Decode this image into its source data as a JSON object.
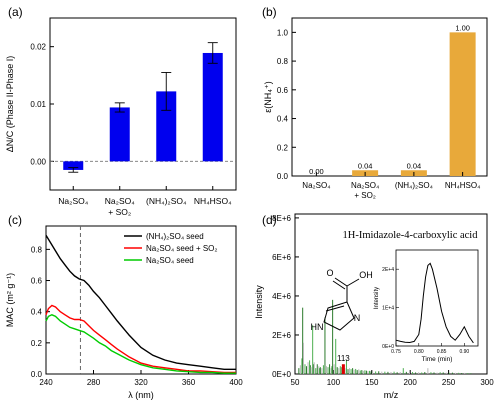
{
  "chart_data": [
    {
      "id": "a",
      "panel_label": "(a)",
      "type": "bar",
      "ylabel": "ΔN/C (Phase II-Phase I)",
      "ylim": [
        -0.005,
        0.025
      ],
      "yticks": [
        "0.00",
        "0.01",
        "0.02"
      ],
      "ytick_values": [
        0.0,
        0.01,
        0.02
      ],
      "categories": [
        {
          "l1": "Na₂SO₄",
          "l2": ""
        },
        {
          "l1": "Na₂SO₄",
          "l2": "+ SO₂"
        },
        {
          "l1": "(NH₄)₂SO₄",
          "l2": ""
        },
        {
          "l1": "NH₄HSO₄",
          "l2": ""
        }
      ],
      "values": [
        -0.0015,
        0.0094,
        0.0122,
        0.0189
      ],
      "errors": [
        0.0004,
        0.0008,
        0.0033,
        0.0018
      ],
      "color": "#0000ee"
    },
    {
      "id": "b",
      "panel_label": "(b)",
      "type": "bar",
      "ylabel": "ε(NH₄⁺)",
      "ylim": [
        0,
        1.1
      ],
      "yticks": [
        "0.0",
        "0.2",
        "0.4",
        "0.6",
        "0.8",
        "1.0"
      ],
      "ytick_values": [
        0,
        0.2,
        0.4,
        0.6,
        0.8,
        1.0
      ],
      "categories": [
        {
          "l1": "Na₂SO₄",
          "l2": ""
        },
        {
          "l1": "Na₂SO₄",
          "l2": "+ SO₂"
        },
        {
          "l1": "(NH₄)₂SO₄",
          "l2": ""
        },
        {
          "l1": "NH₄HSO₄",
          "l2": ""
        }
      ],
      "values": [
        0.0,
        0.04,
        0.04,
        1.0
      ],
      "data_labels": [
        "0.00",
        "0.04",
        "0.04",
        "1.00"
      ],
      "color": "#e8a93a"
    },
    {
      "id": "c",
      "panel_label": "(c)",
      "type": "line",
      "xlabel": "λ (nm)",
      "ylabel": "MAC (m² g⁻¹)",
      "xlim": [
        240,
        400
      ],
      "ylim": [
        0,
        0.95
      ],
      "xticks": [
        "240",
        "280",
        "320",
        "360",
        "400"
      ],
      "xtick_values": [
        240,
        280,
        320,
        360,
        400
      ],
      "yticks": [
        "0.0",
        "0.2",
        "0.4",
        "0.6",
        "0.8"
      ],
      "ytick_values": [
        0,
        0.2,
        0.4,
        0.6,
        0.8
      ],
      "dashed_line_x": 269,
      "series": [
        {
          "name": "(NH₄)₂SO₄ seed",
          "color": "#000000",
          "x": [
            240,
            244,
            248,
            252,
            256,
            260,
            264,
            268,
            272,
            276,
            280,
            285,
            290,
            295,
            300,
            310,
            320,
            330,
            340,
            350,
            360,
            370,
            380,
            390,
            400
          ],
          "y": [
            0.89,
            0.84,
            0.79,
            0.74,
            0.7,
            0.66,
            0.63,
            0.61,
            0.6,
            0.57,
            0.53,
            0.49,
            0.44,
            0.39,
            0.34,
            0.25,
            0.17,
            0.12,
            0.09,
            0.07,
            0.06,
            0.05,
            0.04,
            0.03,
            0.03
          ]
        },
        {
          "name": "Na₂SO₄ seed + SO₂",
          "color": "#ff0000",
          "x": [
            240,
            242,
            245,
            248,
            252,
            256,
            260,
            264,
            268,
            272,
            276,
            280,
            285,
            290,
            295,
            300,
            310,
            320,
            330,
            340,
            350,
            360,
            370,
            380,
            390,
            400
          ],
          "y": [
            0.38,
            0.42,
            0.44,
            0.43,
            0.4,
            0.38,
            0.36,
            0.35,
            0.35,
            0.34,
            0.31,
            0.28,
            0.25,
            0.22,
            0.19,
            0.16,
            0.11,
            0.07,
            0.05,
            0.04,
            0.03,
            0.02,
            0.02,
            0.015,
            0.01,
            0.01
          ]
        },
        {
          "name": "Na₂SO₄ seed",
          "color": "#00cc00",
          "x": [
            240,
            242,
            245,
            248,
            252,
            256,
            260,
            264,
            268,
            272,
            276,
            280,
            285,
            290,
            295,
            300,
            310,
            320,
            330,
            340,
            350,
            360,
            370,
            380,
            390,
            400
          ],
          "y": [
            0.34,
            0.37,
            0.38,
            0.37,
            0.34,
            0.32,
            0.3,
            0.29,
            0.28,
            0.27,
            0.25,
            0.23,
            0.2,
            0.18,
            0.15,
            0.13,
            0.09,
            0.06,
            0.04,
            0.03,
            0.02,
            0.015,
            0.01,
            0.01,
            0.005,
            0.005
          ]
        }
      ],
      "legend_placement": "top-right"
    },
    {
      "id": "d",
      "panel_label": "(d)",
      "type": "bar",
      "title": "1H-Imidazole-4-carboxylic acid",
      "xlabel": "m/z",
      "ylabel": "Intensity",
      "xlim": [
        50,
        300
      ],
      "ylim": [
        0,
        8200000
      ],
      "xticks": [
        "50",
        "100",
        "150",
        "200",
        "250",
        "300"
      ],
      "xtick_values": [
        50,
        100,
        150,
        200,
        250,
        300
      ],
      "yticks": [
        "0E+0",
        "2E+6",
        "4E+6",
        "6E+6",
        "8E+6"
      ],
      "ytick_values": [
        0,
        2000000,
        4000000,
        6000000,
        8000000
      ],
      "highlight_peak": {
        "mz": 113,
        "label": "113",
        "intensity": 500000,
        "color": "#dd0000"
      },
      "background_peaks_mz": [
        55,
        57,
        59,
        60,
        61,
        63,
        65,
        67,
        69,
        70,
        71,
        73,
        74,
        75,
        77,
        79,
        81,
        82,
        83,
        85,
        87,
        89,
        91,
        93,
        95,
        97,
        98,
        99,
        101,
        103,
        105,
        107,
        109,
        111,
        115,
        117,
        119,
        121,
        123,
        125,
        127,
        129,
        131,
        133,
        135,
        137,
        139,
        141,
        143,
        145,
        147,
        149,
        151,
        155,
        159,
        163,
        167,
        171,
        175,
        179,
        183,
        187,
        191,
        195,
        199,
        203,
        207,
        211,
        215,
        219,
        223,
        227,
        231,
        235,
        239,
        243,
        247,
        251,
        255,
        259,
        263,
        267,
        271,
        275,
        279
      ],
      "background_peaks_intensity": [
        300000,
        450000,
        800000,
        3400000,
        1600000,
        500000,
        400000,
        600000,
        700000,
        450000,
        350000,
        2500000,
        500000,
        600000,
        300000,
        500000,
        400000,
        300000,
        350000,
        300000,
        450000,
        2900000,
        400000,
        350000,
        500000,
        300000,
        400000,
        3800000,
        500000,
        1800000,
        350000,
        300000,
        400000,
        350000,
        300000,
        700000,
        250000,
        300000,
        250000,
        300000,
        220000,
        260000,
        200000,
        240000,
        180000,
        200000,
        160000,
        190000,
        170000,
        150000,
        160000,
        140000,
        150000,
        130000,
        140000,
        120000,
        120000,
        110000,
        100000,
        120000,
        90000,
        100000,
        300000,
        110000,
        90000,
        100000,
        80000,
        90000,
        80000,
        100000,
        300000,
        90000,
        80000,
        70000,
        90000,
        80000,
        70000,
        60000,
        70000,
        60000,
        60000,
        50000,
        55000,
        50000,
        40000
      ],
      "background_peak_colors": [
        "#2b7a2b",
        "#b8b8b8",
        "#4caf50"
      ],
      "inset": {
        "type": "line",
        "xlabel": "Time (min)",
        "ylabel": "Intensity",
        "xlim": [
          0.75,
          0.93
        ],
        "ylim": [
          0,
          25000
        ],
        "xticks": [
          "0.75",
          "0.80",
          "0.85",
          "0.90"
        ],
        "xtick_values": [
          0.75,
          0.8,
          0.85,
          0.9
        ],
        "yticks": [
          "0E+0",
          "1E+4",
          "2E+4"
        ],
        "ytick_values": [
          0,
          10000,
          20000
        ],
        "x": [
          0.75,
          0.76,
          0.77,
          0.78,
          0.79,
          0.8,
          0.805,
          0.81,
          0.815,
          0.82,
          0.825,
          0.83,
          0.84,
          0.85,
          0.86,
          0.87,
          0.88,
          0.89,
          0.9,
          0.91,
          0.92
        ],
        "y": [
          1500,
          1200,
          1000,
          900,
          1200,
          3000,
          7000,
          13000,
          18000,
          21000,
          21500,
          20000,
          15000,
          9000,
          5000,
          2500,
          1500,
          3000,
          5000,
          2500,
          800
        ]
      }
    }
  ]
}
